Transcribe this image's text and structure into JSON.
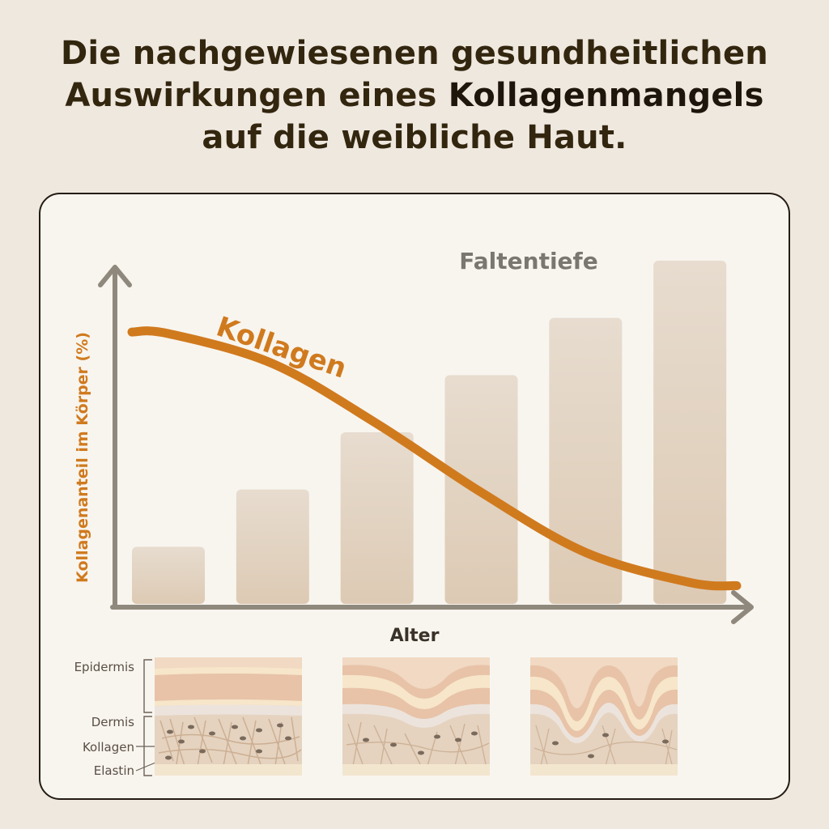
{
  "headline": {
    "line1": "Die nachgewiesenen gesundheitlichen",
    "line2_pre": "Auswirkungen eines ",
    "line2_bold": "Kollagenmangels",
    "line3": "auf die weibliche Haut."
  },
  "chart_data": {
    "type": "bar",
    "xlabel": "Alter",
    "ylabel": "Kollagenanteil im Körper (%)",
    "bar_series": {
      "name": "Faltentiefe",
      "values": [
        1,
        2,
        3,
        4,
        5,
        6
      ]
    },
    "line_series": {
      "name": "Kollagen",
      "values": [
        6.3,
        5.6,
        4.2,
        2.6,
        1.2,
        0.5
      ]
    },
    "ylim": [
      0,
      8
    ],
    "grid": false,
    "colors": {
      "bars": "#e2d3c2",
      "line": "#d07a1e",
      "axes": "#8f887c",
      "ylabel": "#d07a1e",
      "bar_label": "#7a7770"
    }
  },
  "skin_diagram": {
    "labels": [
      "Epidermis",
      "Dermis",
      "Kollagen",
      "Elastin"
    ],
    "colors": {
      "top_layer": "#f1d9c3",
      "pink_layer": "#e8c3a8",
      "cream_layer": "#f7e6c9",
      "dermis": "#e5d3c0",
      "fiber": "#c8a98c",
      "dot": "#7a6a5b"
    }
  }
}
